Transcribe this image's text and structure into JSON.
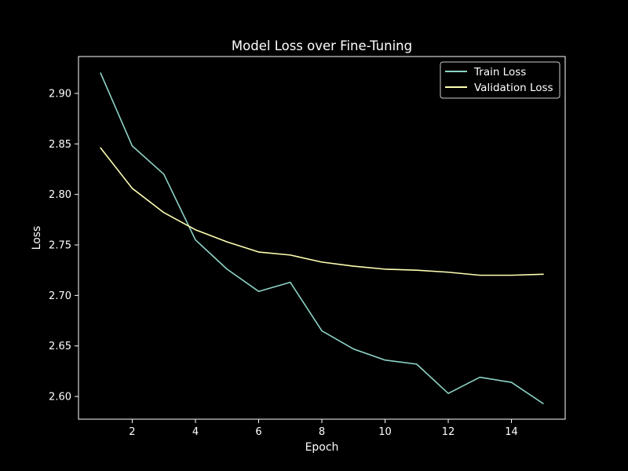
{
  "chart_data": {
    "type": "line",
    "title": "Model Loss over Fine-Tuning",
    "xlabel": "Epoch",
    "ylabel": "Loss",
    "xlim": [
      0.3,
      15.7
    ],
    "ylim": [
      2.5775,
      2.9365
    ],
    "xticks": [
      2,
      4,
      6,
      8,
      10,
      12,
      14
    ],
    "yticks": [
      2.6,
      2.65,
      2.7,
      2.75,
      2.8,
      2.85,
      2.9
    ],
    "grid": false,
    "legend_position": "top-right",
    "x": [
      1,
      2,
      3,
      4,
      5,
      6,
      7,
      8,
      9,
      10,
      11,
      12,
      13,
      14,
      15
    ],
    "series": [
      {
        "name": "Train Loss",
        "color": "#8dd3c7",
        "values": [
          2.92,
          2.848,
          2.82,
          2.755,
          2.726,
          2.704,
          2.713,
          2.665,
          2.647,
          2.636,
          2.632,
          2.603,
          2.619,
          2.614,
          2.593
        ]
      },
      {
        "name": "Validation Loss",
        "color": "#ffffb3",
        "values": [
          2.846,
          2.806,
          2.782,
          2.765,
          2.753,
          2.743,
          2.74,
          2.733,
          2.729,
          2.726,
          2.725,
          2.723,
          2.72,
          2.72,
          2.721
        ]
      }
    ]
  }
}
